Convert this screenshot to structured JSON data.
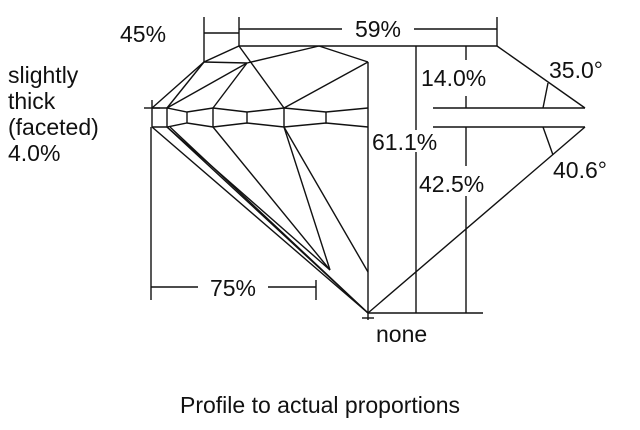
{
  "diagram": {
    "labels": {
      "crown_angle_ref": "45%",
      "table": "59%",
      "girdle_1": "slightly",
      "girdle_2": "thick",
      "girdle_3": "(faceted)",
      "girdle_4": "4.0%",
      "crown_height": "14.0%",
      "crown_angle": "35.0°",
      "total_depth": "61.1%",
      "pavilion_depth": "42.5%",
      "pavilion_angle": "40.6°",
      "lower_half": "75%",
      "culet": "none"
    },
    "caption": "Profile to actual proportions"
  }
}
